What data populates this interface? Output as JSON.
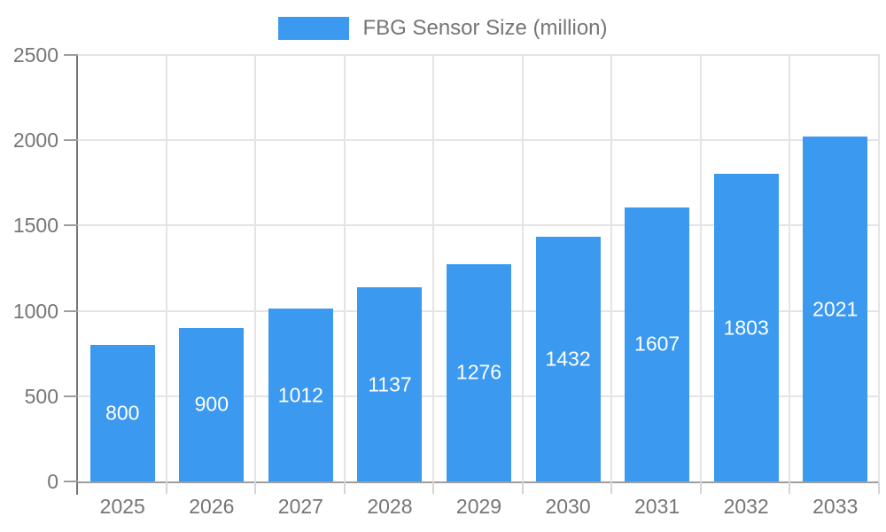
{
  "legend": {
    "label": "FBG Sensor Size (million)",
    "swatch_color": "#3b99f0"
  },
  "chart_data": {
    "type": "bar",
    "title": "",
    "xlabel": "",
    "ylabel": "",
    "categories": [
      "2025",
      "2026",
      "2027",
      "2028",
      "2029",
      "2030",
      "2031",
      "2032",
      "2033"
    ],
    "series": [
      {
        "name": "FBG Sensor Size (million)",
        "values": [
          800,
          900,
          1012,
          1137,
          1276,
          1432,
          1607,
          1803,
          2021
        ]
      }
    ],
    "value_labels_shown": true,
    "value_label_position": "inside-center",
    "ylim": [
      0,
      2500
    ],
    "y_ticks": [
      0,
      500,
      1000,
      1500,
      2000,
      2500
    ],
    "grid": true,
    "legend_position": "top-center"
  },
  "colors": {
    "bar": "#3b99f0",
    "value_label": "#ffffff",
    "axis_text": "#757575",
    "axis_line": "#757575",
    "tick": "#9e9e9e",
    "gridline": "#e4e4e4",
    "background": "#ffffff"
  }
}
